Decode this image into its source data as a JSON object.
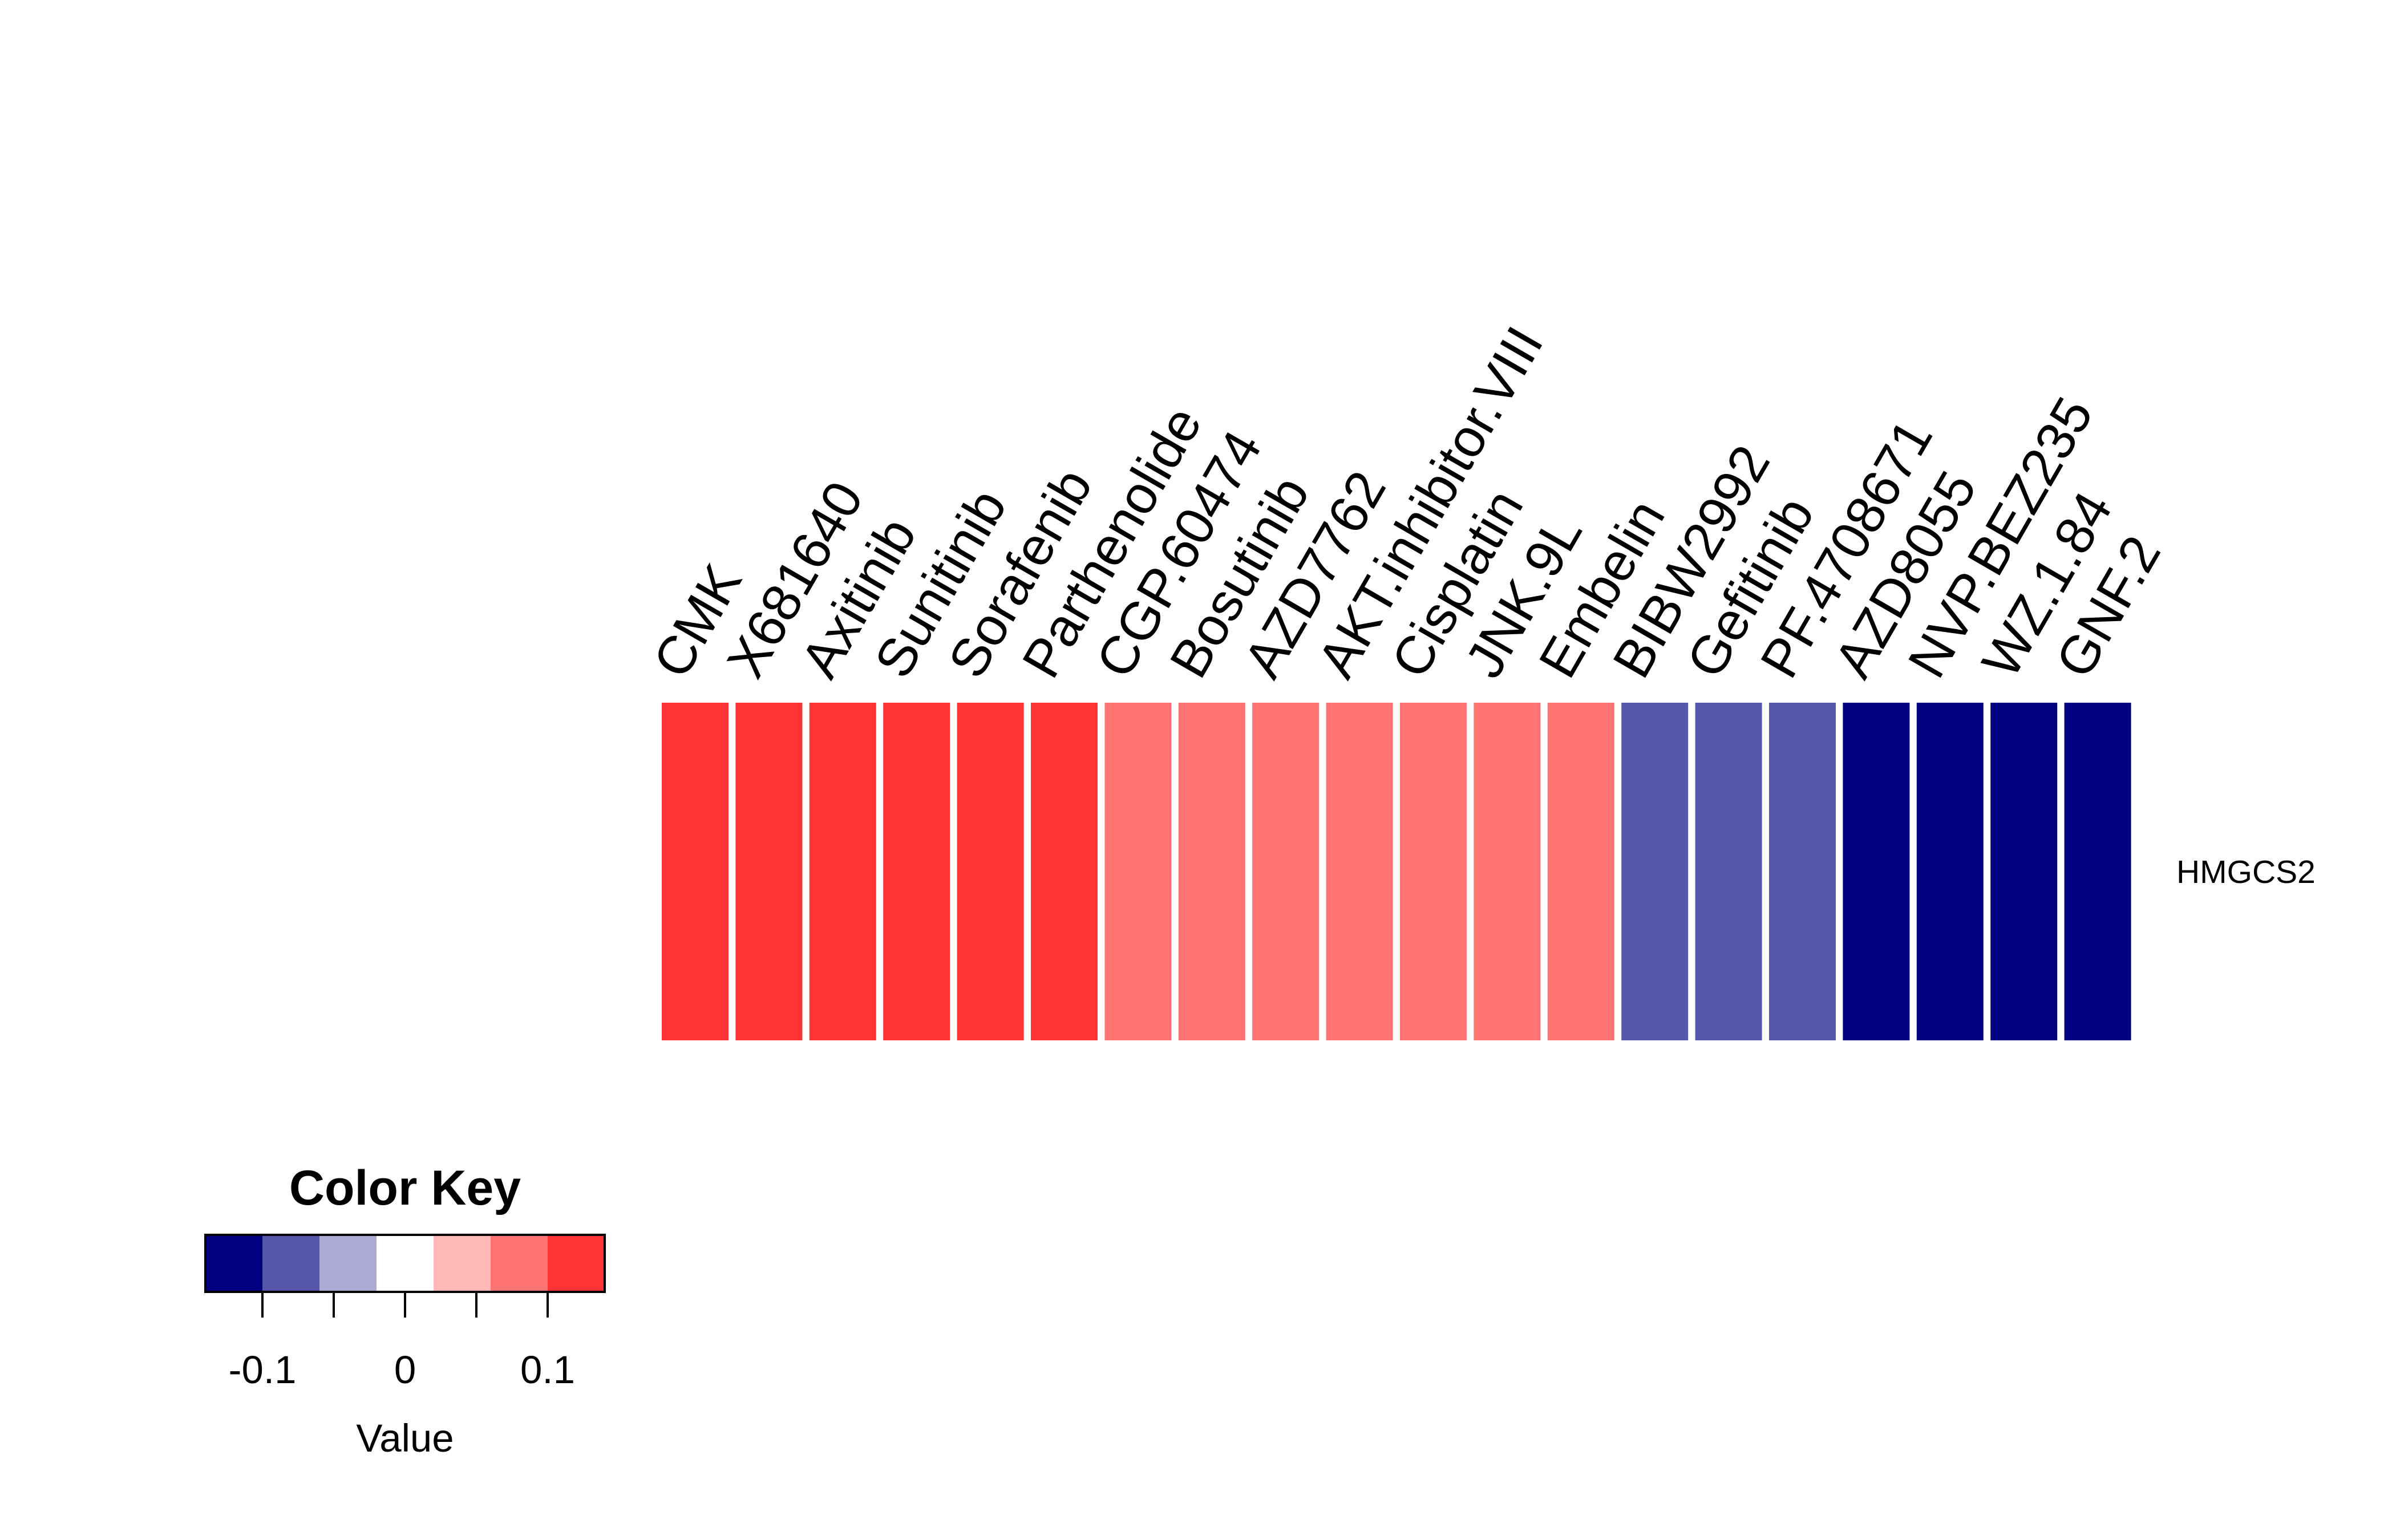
{
  "chart_data": {
    "type": "heatmap",
    "rows": [
      "HMGCS2"
    ],
    "columns": [
      "CMK",
      "X681640",
      "Axitinib",
      "Sunitinib",
      "Sorafenib",
      "Parthenolide",
      "CGP.60474",
      "Bosutinib",
      "AZD7762",
      "AKT.inhibitor.VIII",
      "Cisplatin",
      "JNK.9L",
      "Embelin",
      "BIBW2992",
      "Gefitinib",
      "PF.4708671",
      "AZD8055",
      "NVP.BEZ235",
      "WZ.1.84",
      "GNF.2"
    ],
    "values": [
      [
        0.12,
        0.12,
        0.12,
        0.12,
        0.12,
        0.12,
        0.08,
        0.08,
        0.08,
        0.08,
        0.08,
        0.08,
        0.08,
        -0.08,
        -0.08,
        -0.08,
        -0.12,
        -0.12,
        -0.12,
        -0.12
      ]
    ],
    "color_key": {
      "title": "Color Key",
      "xlabel": "Value",
      "breaks": [
        -0.14,
        -0.1,
        -0.06,
        -0.02,
        0.02,
        0.06,
        0.1,
        0.14
      ],
      "colors": [
        "#000080",
        "#5757AA",
        "#AAAAD5",
        "#FFFFFF",
        "#FFB9B9",
        "#FF7373",
        "#FF3333"
      ],
      "ticks": [
        -0.1,
        -0.05,
        0,
        0.05,
        0.1
      ],
      "tick_labels": [
        "-0.1",
        "",
        "0",
        "",
        "0.1"
      ]
    }
  }
}
